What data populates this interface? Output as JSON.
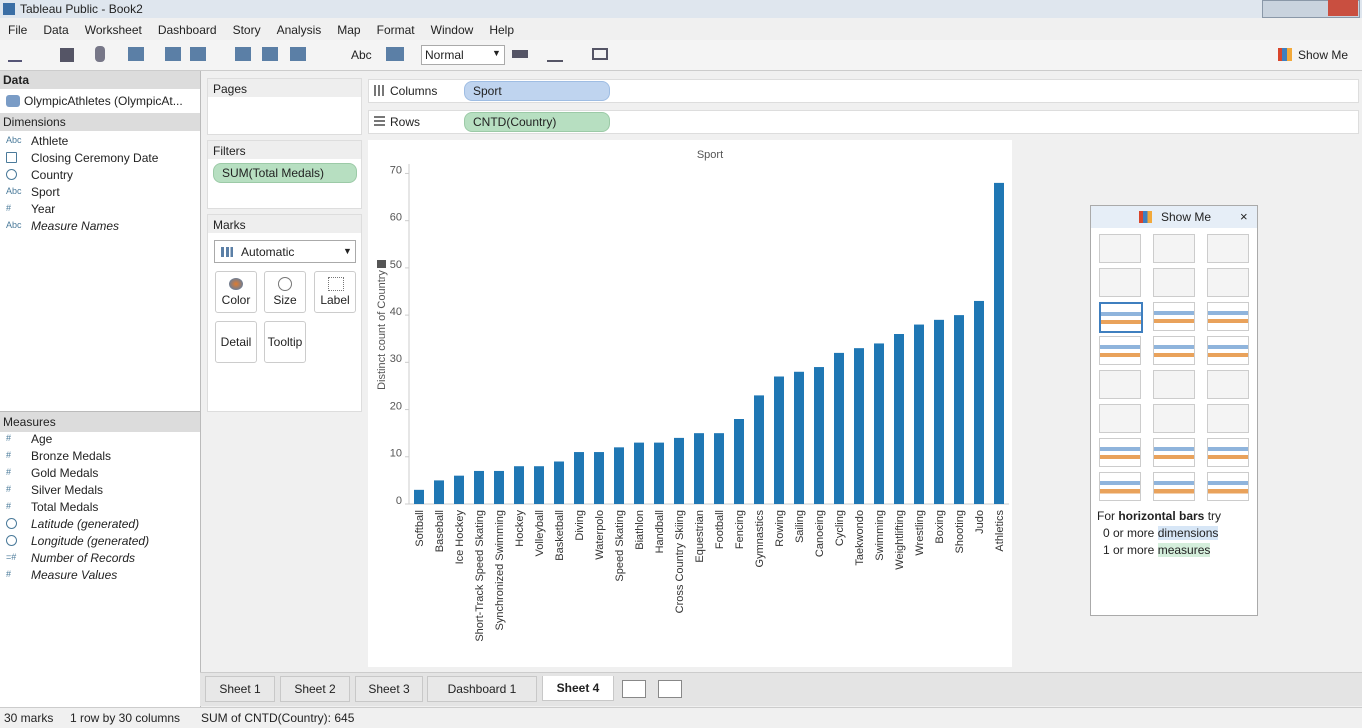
{
  "window": {
    "title": "Tableau Public - Book2"
  },
  "menu": [
    "File",
    "Data",
    "Worksheet",
    "Dashboard",
    "Story",
    "Analysis",
    "Map",
    "Format",
    "Window",
    "Help"
  ],
  "toolbar": {
    "text_button": "Abc",
    "fit": "Normal",
    "show_me": "Show Me"
  },
  "data_pane": {
    "heading": "Data",
    "source": "OlympicAthletes (OlympicAt...",
    "dimensions_heading": "Dimensions",
    "dimensions": [
      "Athlete",
      "Closing Ceremony Date",
      "Country",
      "Sport",
      "Year",
      "Measure Names"
    ],
    "dimension_icons": [
      "Abc",
      null,
      null,
      "Abc",
      "#",
      "Abc"
    ],
    "measures_heading": "Measures",
    "measures": [
      "Age",
      "Bronze Medals",
      "Gold Medals",
      "Silver Medals",
      "Total Medals",
      "Latitude (generated)",
      "Longitude (generated)",
      "Number of Records",
      "Measure Values"
    ],
    "measure_icons": [
      "#",
      "#",
      "#",
      "#",
      "#",
      null,
      null,
      "=#",
      "#"
    ]
  },
  "cards": {
    "pages": "Pages",
    "filters": "Filters",
    "filter_pill": "SUM(Total Medals)",
    "marks": "Marks",
    "mark_type": "Automatic",
    "mark_buttons": [
      "Color",
      "Size",
      "Label",
      "Detail",
      "Tooltip"
    ]
  },
  "shelves": {
    "columns": "Columns",
    "columns_pill": "Sport",
    "rows": "Rows",
    "rows_pill": "CNTD(Country)"
  },
  "chart_data": {
    "type": "bar",
    "title": "Sport",
    "y_label": "Distinct count of Country",
    "color": "#1f77b4",
    "categories": [
      "Softball",
      "Baseball",
      "Ice Hockey",
      "Short-Track Speed Skating",
      "Synchronized Swimming",
      "Hockey",
      "Volleyball",
      "Basketball",
      "Diving",
      "Waterpolo",
      "Speed Skating",
      "Biathlon",
      "Handball",
      "Cross Country Skiing",
      "Equestrian",
      "Football",
      "Fencing",
      "Gymnastics",
      "Rowing",
      "Sailing",
      "Canoeing",
      "Cycling",
      "Taekwondo",
      "Swimming",
      "Weightlifting",
      "Wrestling",
      "Boxing",
      "Shooting",
      "Judo",
      "Athletics"
    ],
    "values": [
      3,
      5,
      6,
      7,
      7,
      8,
      8,
      9,
      11,
      11,
      12,
      13,
      13,
      14,
      15,
      15,
      18,
      23,
      27,
      28,
      29,
      32,
      33,
      34,
      36,
      38,
      39,
      40,
      43,
      68
    ],
    "ylim": [
      0,
      72
    ],
    "yticks": [
      0,
      10,
      20,
      30,
      40,
      50,
      60,
      70
    ]
  },
  "show_me": {
    "title": "Show Me",
    "hint_prefix": "For",
    "hint_chart": "horizontal bars",
    "hint_suffix": "try",
    "req1_count": "0 or more",
    "req1_kind": "dimensions",
    "req2_count": "1 or more",
    "req2_kind": "measures"
  },
  "tabs": [
    "Sheet 1",
    "Sheet 2",
    "Sheet 3",
    "Dashboard 1",
    "Sheet 4"
  ],
  "status": {
    "marks": "30 marks",
    "layout": "1 row by 30 columns",
    "sum": "SUM of CNTD(Country): 645"
  }
}
